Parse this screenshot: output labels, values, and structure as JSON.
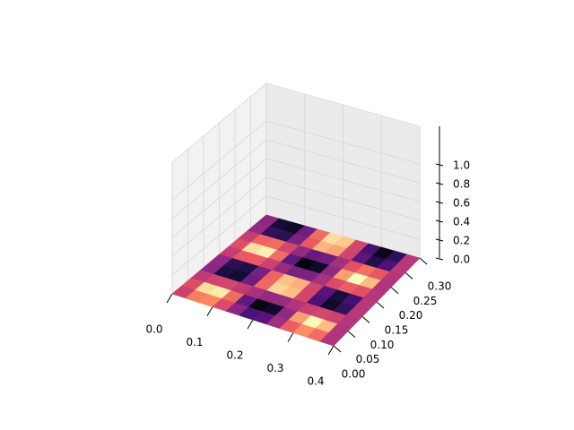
{
  "chart_data": {
    "type": "surface",
    "colormap": "magma",
    "xlim": [
      0,
      0.4
    ],
    "ylim": [
      0,
      0.3
    ],
    "zlim": [
      0,
      1.4
    ],
    "xticks": [
      {
        "value": 0,
        "label": "0.0"
      },
      0.1,
      0.2,
      0.3,
      0.4
    ],
    "yticks": [
      {
        "value": 0,
        "label": "0.00"
      },
      0.05,
      {
        "value": 0.1,
        "label": "0.10"
      },
      0.15,
      {
        "value": 0.2,
        "label": "0.20"
      },
      0.25,
      {
        "value": 0.3,
        "label": "0.30"
      }
    ],
    "zticks": [
      {
        "value": 0,
        "label": "0.0"
      },
      0.2,
      0.4,
      0.6,
      0.8,
      {
        "value": 1,
        "label": "1.0"
      }
    ],
    "grid": true,
    "values": [
      [
        0.56,
        0.73,
        0.75,
        0.6,
        0.39,
        0.24,
        0.27,
        0.45,
        0.66,
        0.77,
        0.69,
        0.49
      ],
      [
        0.61,
        0.93,
        0.96,
        0.69,
        0.29,
        0.03,
        0.08,
        0.41,
        0.8,
        0.99,
        0.86,
        0.49
      ],
      [
        0.52,
        0.57,
        0.58,
        0.53,
        0.47,
        0.42,
        0.43,
        0.49,
        0.55,
        0.58,
        0.56,
        0.5
      ],
      [
        0.4,
        0.12,
        0.09,
        0.33,
        0.68,
        0.91,
        0.87,
        0.58,
        0.24,
        0.07,
        0.18,
        0.51
      ],
      [
        0.41,
        0.16,
        0.13,
        0.35,
        0.67,
        0.87,
        0.83,
        0.57,
        0.27,
        0.11,
        0.22,
        0.51
      ],
      [
        0.54,
        0.64,
        0.65,
        0.56,
        0.43,
        0.35,
        0.36,
        0.47,
        0.6,
        0.66,
        0.62,
        0.5
      ],
      [
        0.61,
        0.94,
        0.97,
        0.69,
        0.29,
        0.02,
        0.07,
        0.41,
        0.8,
        1.0,
        0.86,
        0.49
      ],
      [
        0.54,
        0.67,
        0.69,
        0.58,
        0.42,
        0.31,
        0.33,
        0.46,
        0.62,
        0.7,
        0.64,
        0.5
      ],
      [
        0.42,
        0.18,
        0.16,
        0.36,
        0.65,
        0.85,
        0.81,
        0.57,
        0.28,
        0.14,
        0.24,
        0.51
      ],
      [
        0.4,
        0.1,
        0.07,
        0.33,
        0.69,
        0.93,
        0.89,
        0.58,
        0.23,
        0.05,
        0.17,
        0.51
      ]
    ]
  }
}
